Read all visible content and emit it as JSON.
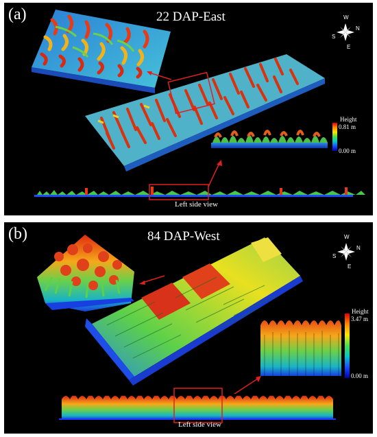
{
  "panels": [
    {
      "label": "(a)",
      "title": "22 DAP-East",
      "side_caption": "Left side view",
      "legend": {
        "title": "Height",
        "max": "0.81 m",
        "min": "0.00 m"
      },
      "compass": {
        "n": "N",
        "s": "S",
        "e": "E",
        "w": "W"
      }
    },
    {
      "label": "(b)",
      "title": "84 DAP-West",
      "side_caption": "Left side view",
      "legend": {
        "title": "Height",
        "max": "3.47 m",
        "min": "0.00 m"
      },
      "compass": {
        "n": "N",
        "s": "S",
        "e": "E",
        "w": "W"
      }
    }
  ],
  "colors": {
    "background": "#000000",
    "callout": "#e02020",
    "height_scale": [
      "#e10000",
      "#ff8a00",
      "#ffe600",
      "#47e14a",
      "#00c9c9",
      "#1a4bff",
      "#0000b0"
    ]
  }
}
